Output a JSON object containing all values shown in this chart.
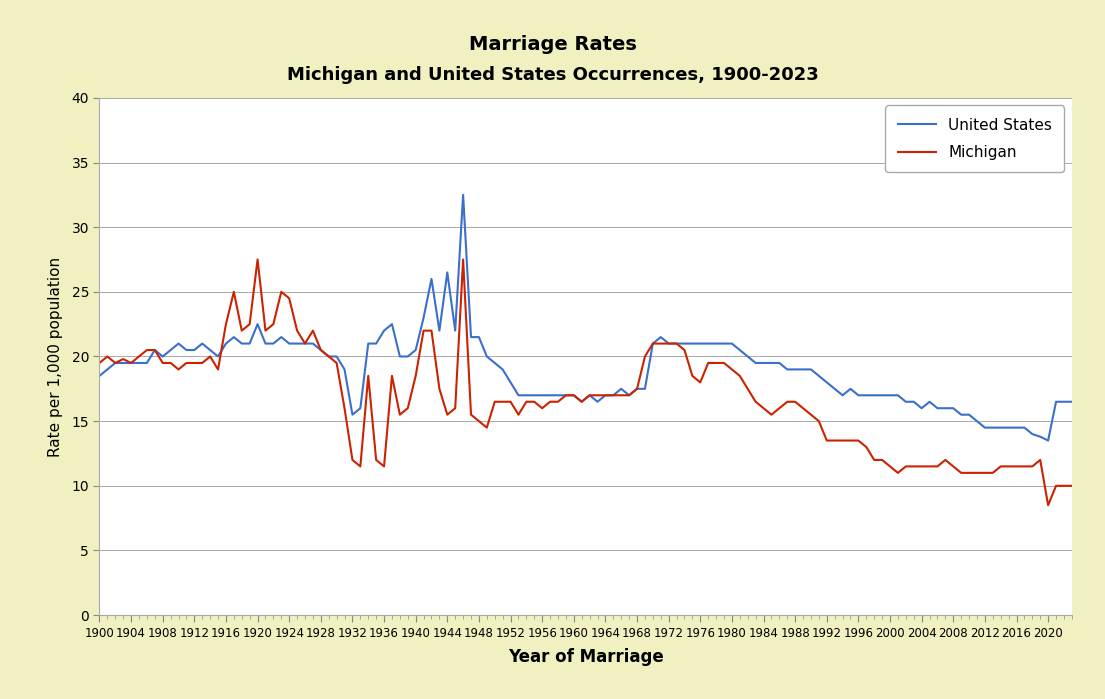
{
  "title_line1": "Marriage Rates",
  "title_line2": "Michigan and United States Occurrences, 1900-2023",
  "xlabel": "Year of Marriage",
  "ylabel": "Rate per 1,000 population",
  "background_color": "#f0f0c0",
  "plot_bg_color": "#ffffff",
  "ylim": [
    0,
    40
  ],
  "yticks": [
    0,
    5,
    10,
    15,
    20,
    25,
    30,
    35,
    40
  ],
  "xlim": [
    1900,
    2023
  ],
  "xtick_start": 1900,
  "xtick_end": 2023,
  "xtick_step": 4,
  "michigan_color": "#cc2200",
  "us_color": "#3a6fcc",
  "michigan_label": "Michigan",
  "us_label": "United States",
  "years": [
    1900,
    1901,
    1902,
    1903,
    1904,
    1905,
    1906,
    1907,
    1908,
    1909,
    1910,
    1911,
    1912,
    1913,
    1914,
    1915,
    1916,
    1917,
    1918,
    1919,
    1920,
    1921,
    1922,
    1923,
    1924,
    1925,
    1926,
    1927,
    1928,
    1929,
    1930,
    1931,
    1932,
    1933,
    1934,
    1935,
    1936,
    1937,
    1938,
    1939,
    1940,
    1941,
    1942,
    1943,
    1944,
    1945,
    1946,
    1947,
    1948,
    1949,
    1950,
    1951,
    1952,
    1953,
    1954,
    1955,
    1956,
    1957,
    1958,
    1959,
    1960,
    1961,
    1962,
    1963,
    1964,
    1965,
    1966,
    1967,
    1968,
    1969,
    1970,
    1971,
    1972,
    1973,
    1974,
    1975,
    1976,
    1977,
    1978,
    1979,
    1980,
    1981,
    1982,
    1983,
    1984,
    1985,
    1986,
    1987,
    1988,
    1989,
    1990,
    1991,
    1992,
    1993,
    1994,
    1995,
    1996,
    1997,
    1998,
    1999,
    2000,
    2001,
    2002,
    2003,
    2004,
    2005,
    2006,
    2007,
    2008,
    2009,
    2010,
    2011,
    2012,
    2013,
    2014,
    2015,
    2016,
    2017,
    2018,
    2019,
    2020,
    2021,
    2022,
    2023
  ],
  "michigan": [
    19.5,
    20.0,
    19.5,
    19.8,
    19.5,
    20.0,
    20.5,
    20.5,
    19.5,
    19.5,
    19.0,
    19.5,
    19.5,
    19.5,
    20.0,
    19.0,
    22.5,
    25.0,
    22.0,
    22.5,
    27.5,
    22.0,
    22.5,
    25.0,
    24.5,
    22.0,
    21.0,
    22.0,
    20.5,
    20.0,
    19.5,
    16.0,
    12.0,
    11.5,
    18.5,
    12.0,
    11.5,
    18.5,
    15.5,
    16.0,
    18.5,
    22.0,
    22.0,
    17.5,
    15.5,
    16.0,
    27.5,
    15.5,
    15.0,
    14.5,
    16.5,
    16.5,
    16.5,
    15.5,
    16.5,
    16.5,
    16.0,
    16.5,
    16.5,
    17.0,
    17.0,
    16.5,
    17.0,
    17.0,
    17.0,
    17.0,
    17.0,
    17.0,
    17.5,
    20.0,
    21.0,
    21.0,
    21.0,
    21.0,
    20.5,
    18.5,
    18.0,
    19.5,
    19.5,
    19.5,
    19.0,
    18.5,
    17.5,
    16.5,
    16.0,
    15.5,
    16.0,
    16.5,
    16.5,
    16.0,
    15.5,
    15.0,
    13.5,
    13.5,
    13.5,
    13.5,
    13.5,
    13.0,
    12.0,
    12.0,
    11.5,
    11.0,
    11.5,
    11.5,
    11.5,
    11.5,
    11.5,
    12.0,
    11.5,
    11.0,
    11.0,
    11.0,
    11.0,
    11.0,
    11.5,
    11.5,
    11.5,
    11.5,
    11.5,
    12.0,
    8.5,
    10.0,
    10.0,
    10.0
  ],
  "us": [
    18.5,
    19.0,
    19.5,
    19.5,
    19.5,
    19.5,
    19.5,
    20.5,
    20.0,
    20.5,
    21.0,
    20.5,
    20.5,
    21.0,
    20.5,
    20.0,
    21.0,
    21.5,
    21.0,
    21.0,
    22.5,
    21.0,
    21.0,
    21.5,
    21.0,
    21.0,
    21.0,
    21.0,
    20.5,
    20.0,
    20.0,
    19.0,
    15.5,
    16.0,
    21.0,
    21.0,
    22.0,
    22.5,
    20.0,
    20.0,
    20.5,
    23.0,
    26.0,
    22.0,
    26.5,
    22.0,
    32.5,
    21.5,
    21.5,
    20.0,
    19.5,
    19.0,
    18.0,
    17.0,
    17.0,
    17.0,
    17.0,
    17.0,
    17.0,
    17.0,
    17.0,
    16.5,
    17.0,
    16.5,
    17.0,
    17.0,
    17.5,
    17.0,
    17.5,
    17.5,
    21.0,
    21.5,
    21.0,
    21.0,
    21.0,
    21.0,
    21.0,
    21.0,
    21.0,
    21.0,
    21.0,
    20.5,
    20.0,
    19.5,
    19.5,
    19.5,
    19.5,
    19.0,
    19.0,
    19.0,
    19.0,
    18.5,
    18.0,
    17.5,
    17.0,
    17.5,
    17.0,
    17.0,
    17.0,
    17.0,
    17.0,
    17.0,
    16.5,
    16.5,
    16.0,
    16.5,
    16.0,
    16.0,
    16.0,
    15.5,
    15.5,
    15.0,
    14.5,
    14.5,
    14.5,
    14.5,
    14.5,
    14.5,
    14.0,
    13.8,
    13.5,
    16.5,
    16.5,
    16.5
  ]
}
